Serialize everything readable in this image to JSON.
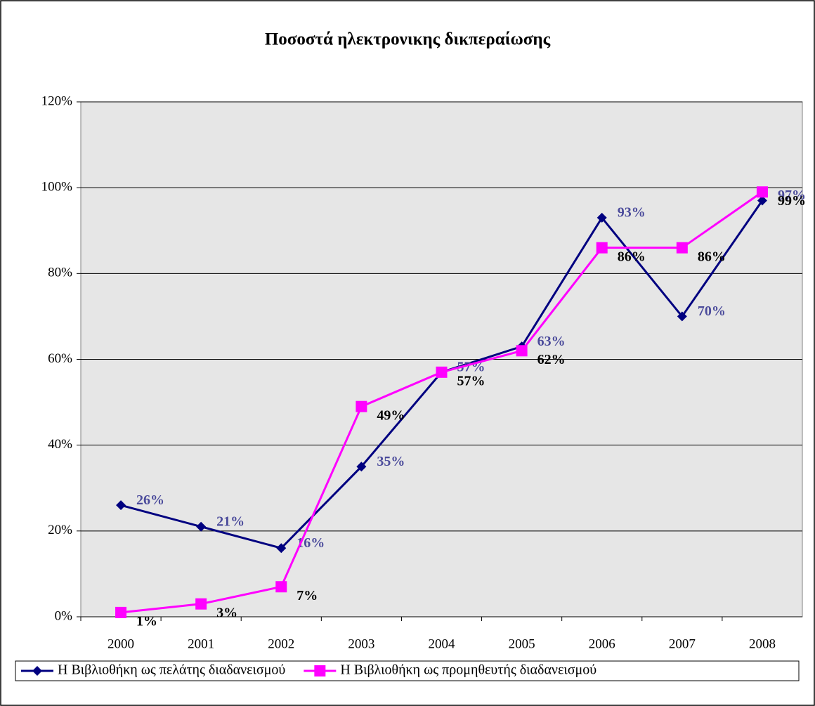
{
  "chart_data": {
    "type": "line",
    "title": "Ποσοστά ηλεκτρονικης δικπεραίωσης",
    "categories": [
      "2000",
      "2001",
      "2002",
      "2003",
      "2004",
      "2005",
      "2006",
      "2007",
      "2008"
    ],
    "series": [
      {
        "name": "Η Βιβλιοθήκη ως πελάτης διαδανεισμού",
        "color": "#000080",
        "marker": "diamond",
        "label_color": "#4b4b9b",
        "values": [
          26,
          21,
          16,
          35,
          57,
          63,
          93,
          70,
          97
        ],
        "value_labels": [
          "26%",
          "21%",
          "16%",
          "35%",
          "57%",
          "63%",
          "93%",
          "70%",
          "97%"
        ]
      },
      {
        "name": "Η Βιβλιοθήκη ως προμηθευτής διαδανεισμού",
        "color": "#ff00ff",
        "marker": "square",
        "label_color": "#000000",
        "values": [
          1,
          3,
          7,
          49,
          57,
          62,
          86,
          86,
          99
        ],
        "value_labels": [
          "1%",
          "3%",
          "7%",
          "49%",
          "57%",
          "62%",
          "86%",
          "86%",
          "99%"
        ]
      }
    ],
    "ylim": [
      0,
      120
    ],
    "yticks": [
      {
        "value": 0,
        "label": "0%"
      },
      {
        "value": 20,
        "label": "20%"
      },
      {
        "value": 40,
        "label": "40%"
      },
      {
        "value": 60,
        "label": "60%"
      },
      {
        "value": 80,
        "label": "80%"
      },
      {
        "value": 100,
        "label": "100%"
      },
      {
        "value": 120,
        "label": "120%"
      }
    ],
    "grid": true,
    "legend": "bottom"
  }
}
